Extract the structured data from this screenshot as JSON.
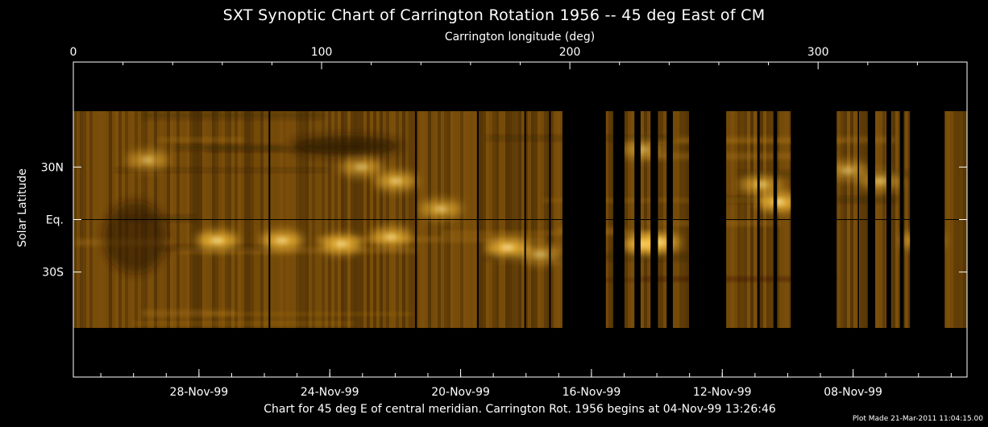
{
  "chart_data": {
    "type": "heatmap",
    "title": "SXT Synoptic Chart of Carrington Rotation 1956 -- 45 deg East of CM",
    "xlabel_top": "Carrington longitude (deg)",
    "ylabel": "Solar Latitude",
    "caption": "Chart for 45 deg E of central meridian.  Carrington Rot. 1956 begins at 04-Nov-99 13:26:46",
    "plot_made": "Plot Made 21-Mar-2011 11:04:15.00",
    "x_range": [
      0,
      360
    ],
    "y_range": [
      -90,
      90
    ],
    "top_ticks": [
      {
        "value": 0,
        "label": "0"
      },
      {
        "value": 100,
        "label": "100"
      },
      {
        "value": 200,
        "label": "200"
      },
      {
        "value": 300,
        "label": "300"
      }
    ],
    "left_ticks": [
      {
        "value": 30,
        "label": "30N"
      },
      {
        "value": 0,
        "label": "Eq."
      },
      {
        "value": -30,
        "label": "30S"
      }
    ],
    "bottom_ticks": [
      {
        "value": 50.6,
        "label": "28-Nov-99"
      },
      {
        "value": 103.3,
        "label": "24-Nov-99"
      },
      {
        "value": 156.0,
        "label": "20-Nov-99"
      },
      {
        "value": 208.7,
        "label": "16-Nov-99"
      },
      {
        "value": 261.4,
        "label": "12-Nov-99"
      },
      {
        "value": 314.1,
        "label": "08-Nov-99"
      }
    ],
    "data_lat_range": [
      -62,
      62
    ],
    "coverage_segments": [
      [
        0,
        197
      ],
      [
        214.5,
        217.5
      ],
      [
        222,
        226
      ],
      [
        228.5,
        232.5
      ],
      [
        235.5,
        239
      ],
      [
        241.5,
        248
      ],
      [
        263,
        275.5
      ],
      [
        276.5,
        282
      ],
      [
        283.5,
        289
      ],
      [
        307.5,
        316
      ],
      [
        316.5,
        320
      ],
      [
        323,
        327.5
      ],
      [
        329.5,
        333
      ],
      [
        334.5,
        337
      ],
      [
        351,
        360
      ]
    ],
    "dark_dividers": [
      79,
      138,
      163,
      182,
      192
    ],
    "bright_regions": [
      {
        "lon": 58,
        "lat": -12,
        "intensity": 0.9
      },
      {
        "lon": 84,
        "lat": -12,
        "intensity": 0.85
      },
      {
        "lon": 108,
        "lat": -14,
        "intensity": 0.9
      },
      {
        "lon": 128,
        "lat": -10,
        "intensity": 0.8
      },
      {
        "lon": 175,
        "lat": -16,
        "intensity": 0.95
      },
      {
        "lon": 148,
        "lat": 6,
        "intensity": 0.7
      },
      {
        "lon": 130,
        "lat": 22,
        "intensity": 0.75
      },
      {
        "lon": 116,
        "lat": 30,
        "intensity": 0.65
      },
      {
        "lon": 30,
        "lat": 34,
        "intensity": 0.6
      },
      {
        "lon": 230,
        "lat": -14,
        "intensity": 0.95
      },
      {
        "lon": 236,
        "lat": -13,
        "intensity": 0.85
      },
      {
        "lon": 284,
        "lat": 10,
        "intensity": 0.95
      },
      {
        "lon": 277,
        "lat": 20,
        "intensity": 0.7
      },
      {
        "lon": 342,
        "lat": -12,
        "intensity": 0.75
      },
      {
        "lon": 312,
        "lat": 28,
        "intensity": 0.6
      },
      {
        "lon": 325,
        "lat": 22,
        "intensity": 0.6
      },
      {
        "lon": 229,
        "lat": 40,
        "intensity": 0.55
      },
      {
        "lon": 188,
        "lat": -20,
        "intensity": 0.6
      }
    ],
    "colors": {
      "background": "#000000",
      "base_disk": "#6e4608",
      "dark": "#2a1804",
      "bright": "#ffc33a",
      "axes": "#ffffff",
      "equator_line": "#000000"
    }
  }
}
